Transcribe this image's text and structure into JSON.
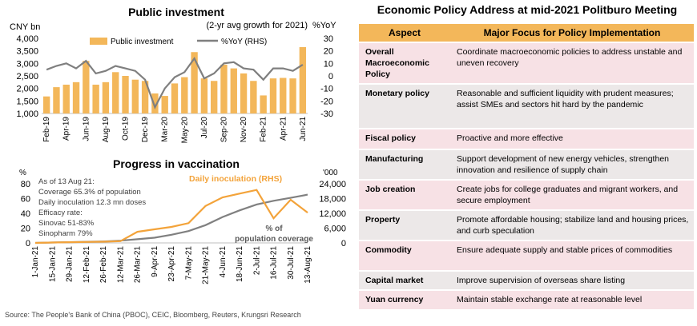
{
  "investment_chart": {
    "title": "Public investment",
    "subtitle": "(2-yr avg growth for 2021)",
    "left_unit": "CNY bn",
    "right_unit": "%YoY",
    "legend_bar": "Public investment",
    "legend_line": "%YoY (RHS)",
    "y_left_ticks": [
      "1,000",
      "1,500",
      "2,000",
      "2,500",
      "3,000",
      "3,500",
      "4,000"
    ],
    "y_right_ticks": [
      "-30",
      "-20",
      "-10",
      "0",
      "10",
      "20",
      "30"
    ],
    "x_tick_labels": [
      "Feb-19",
      "Apr-19",
      "Jun-19",
      "Aug-19",
      "Oct-19",
      "Dec-19",
      "Mar-20",
      "May-20",
      "Jul-20",
      "Sep-20",
      "Nov-20",
      "Feb-21",
      "Apr-21",
      "Jun-21"
    ],
    "colors": {
      "bar": "#f3b75a",
      "line": "#7f7f7f"
    }
  },
  "vaccination_chart": {
    "title": "Progress in vaccination",
    "left_unit": "%",
    "right_unit": "'000",
    "series_label_daily": "Daily inoculation (RHS)",
    "series_label_coverage": "% of population coverage",
    "annotation_lines": [
      "As of 13 Aug 21:",
      "Coverage 65.3% of population",
      "Daily inoculation 12.3 mn doses",
      "Efficacy rate:",
      "Sinovac 51-83%",
      "Sinopharm 79%"
    ],
    "y_left_ticks": [
      "0",
      "20",
      "40",
      "60",
      "80"
    ],
    "y_right_ticks": [
      "0",
      "6,000",
      "12,000",
      "18,000",
      "24,000"
    ],
    "x_tick_labels": [
      "1-Jan-21",
      "15-Jan-21",
      "29-Jan-21",
      "12-Feb-21",
      "26-Feb-21",
      "12-Mar-21",
      "26-Mar-21",
      "9-Apr-21",
      "23-Apr-21",
      "7-May-21",
      "21-May-21",
      "4-Jun-21",
      "18-Jun-21",
      "2-Jul-21",
      "16-Jul-21",
      "30-Jul-21",
      "13-Aug-21"
    ],
    "colors": {
      "daily": "#f3a33a",
      "coverage": "#808080"
    }
  },
  "chart_data": [
    {
      "type": "bar",
      "title": "Public investment",
      "xlabel": "",
      "ylabel": "CNY bn",
      "ylabel_right": "%YoY",
      "ylim": [
        1000,
        4000
      ],
      "ylim_right": [
        -30,
        30
      ],
      "categories": [
        "Feb-19",
        "Mar-19",
        "Apr-19",
        "May-19",
        "Jun-19",
        "Jul-19",
        "Aug-19",
        "Sep-19",
        "Oct-19",
        "Nov-19",
        "Dec-19",
        "Jan-20",
        "Mar-20",
        "Apr-20",
        "May-20",
        "Jun-20",
        "Jul-20",
        "Aug-20",
        "Sep-20",
        "Oct-20",
        "Nov-20",
        "Dec-20",
        "Feb-21",
        "Mar-21",
        "Apr-21",
        "May-21",
        "Jun-21"
      ],
      "series": [
        {
          "name": "Public investment",
          "kind": "bar",
          "axis": "left",
          "values": [
            1680,
            2050,
            2150,
            2250,
            3100,
            2150,
            2250,
            2650,
            2500,
            2350,
            2300,
            1800,
            1700,
            2200,
            2450,
            3450,
            2400,
            2300,
            2950,
            2800,
            2600,
            2300,
            1720,
            2400,
            2420,
            2400,
            3650
          ]
        },
        {
          "name": "%YoY (RHS)",
          "kind": "line",
          "axis": "right",
          "values": [
            5,
            8,
            10,
            6,
            12,
            2,
            4,
            8,
            6,
            4,
            -3,
            -25,
            -10,
            -1,
            3,
            14,
            -2,
            2,
            10,
            11,
            6,
            5,
            -3,
            6,
            6,
            4,
            9
          ]
        }
      ]
    },
    {
      "type": "line",
      "title": "Progress in vaccination",
      "xlabel": "",
      "ylabel": "%",
      "ylabel_right": "'000",
      "ylim": [
        0,
        80
      ],
      "ylim_right": [
        0,
        24000
      ],
      "x": [
        "1-Jan-21",
        "15-Jan-21",
        "29-Jan-21",
        "12-Feb-21",
        "26-Feb-21",
        "12-Mar-21",
        "26-Mar-21",
        "9-Apr-21",
        "23-Apr-21",
        "7-May-21",
        "21-May-21",
        "4-Jun-21",
        "18-Jun-21",
        "2-Jul-21",
        "16-Jul-21",
        "30-Jul-21",
        "13-Aug-21"
      ],
      "series": [
        {
          "name": "Daily inoculation (RHS)",
          "axis": "right",
          "values": [
            0,
            150,
            300,
            400,
            500,
            700,
            4500,
            5500,
            6500,
            8000,
            15000,
            18500,
            20000,
            21500,
            10000,
            17500,
            12300
          ]
        },
        {
          "name": "% of population coverage",
          "axis": "left",
          "values": [
            0,
            0.5,
            1,
            1.5,
            2,
            3,
            5,
            7,
            11,
            16,
            24,
            35,
            44,
            52,
            57,
            61,
            65.3
          ]
        }
      ]
    }
  ],
  "policy_table": {
    "title": "Economic Policy Address at mid-2021 Politburo Meeting",
    "headers": [
      "Aspect",
      "Major Focus for Policy Implementation"
    ],
    "rows": [
      {
        "aspect": "Overall Macroeconomic Policy",
        "focus": "Coordinate macroeconomic policies to address unstable and uneven recovery"
      },
      {
        "aspect": "Monetary policy",
        "focus": "Reasonable and sufficient liquidity with prudent measures; assist SMEs and sectors hit hard by the pandemic"
      },
      {
        "aspect": "Fiscal policy",
        "focus": "Proactive and more effective"
      },
      {
        "aspect": "Manufacturing",
        "focus": "Support development of new energy vehicles, strengthen innovation and resilience of supply chain"
      },
      {
        "aspect": "Job creation",
        "focus": "Create jobs for college graduates and migrant workers, and secure employment"
      },
      {
        "aspect": "Property",
        "focus": "Promote affordable housing;  stabilize land and housing prices, and curb speculation"
      },
      {
        "aspect": "Commodity",
        "focus": "Ensure adequate supply and stable prices of commodities"
      },
      {
        "aspect": "Capital market",
        "focus": "Improve supervision of overseas share listing"
      },
      {
        "aspect": "Yuan currency",
        "focus": "Maintain stable exchange rate at reasonable level"
      }
    ]
  },
  "source": "Source: The People's Bank of China (PBOC), CEIC, Bloomberg, Reuters, Krungsri Research"
}
